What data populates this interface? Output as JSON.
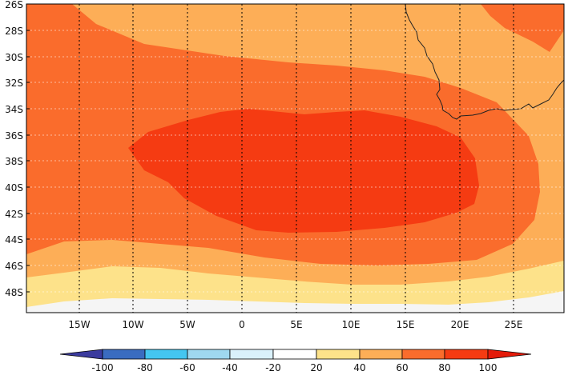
{
  "map": {
    "lat_labels": [
      "26S",
      "28S",
      "30S",
      "32S",
      "34S",
      "36S",
      "38S",
      "40S",
      "42S",
      "44S",
      "46S",
      "48S"
    ],
    "lon_labels": [
      "15W",
      "10W",
      "5W",
      "0",
      "5E",
      "10E",
      "15E",
      "20E",
      "25E"
    ],
    "extent": {
      "lon_min": -19.5,
      "lon_max": 29.2,
      "lat_min": -49.5,
      "lat_max": -25.7
    }
  },
  "colorbar": {
    "tick_labels": [
      "-100",
      "-80",
      "-60",
      "-40",
      "-20",
      "20",
      "40",
      "60",
      "80",
      "100"
    ],
    "colors": {
      "below": "#3b3b9e",
      "n100_n80": "#3a6cc0",
      "n80_n60": "#44c6f0",
      "n60_n40": "#9fd8ef",
      "n40_n20": "#daf1fb",
      "n20_20": "#ffffff",
      "c20_40": "#fde28a",
      "c40_60": "#fdae57",
      "c60_80": "#fa6c2c",
      "c80_100": "#f53b12",
      "above": "#e41b0a"
    }
  },
  "colors": {
    "coast": "#222222",
    "grid": "#000000"
  }
}
